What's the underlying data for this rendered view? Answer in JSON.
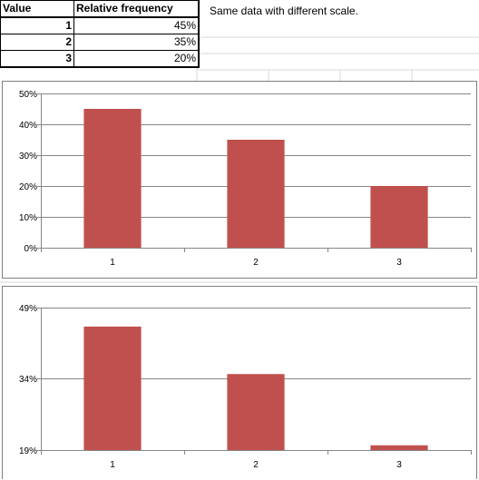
{
  "table": {
    "headers": [
      "Value",
      "Relative frequency"
    ],
    "rows": [
      {
        "value": "1",
        "freq": "45%"
      },
      {
        "value": "2",
        "freq": "35%"
      },
      {
        "value": "3",
        "freq": "20%"
      }
    ]
  },
  "note": "Same data with different scale.",
  "bar_color": "#c0504d",
  "chart_data": [
    {
      "type": "bar",
      "categories": [
        "1",
        "2",
        "3"
      ],
      "values": [
        0.45,
        0.35,
        0.2
      ],
      "ylim": [
        0,
        0.5
      ],
      "yticks": [
        0,
        0.1,
        0.2,
        0.3,
        0.4,
        0.5
      ],
      "ytick_labels": [
        "0%",
        "10%",
        "20%",
        "30%",
        "40%",
        "50%"
      ],
      "grid": true,
      "legend": "none"
    },
    {
      "type": "bar",
      "categories": [
        "1",
        "2",
        "3"
      ],
      "values": [
        0.45,
        0.35,
        0.2
      ],
      "ylim": [
        0.19,
        0.49
      ],
      "yticks": [
        0.19,
        0.34,
        0.49
      ],
      "ytick_labels": [
        "19%",
        "34%",
        "49%"
      ],
      "grid": true,
      "legend": "none"
    }
  ]
}
